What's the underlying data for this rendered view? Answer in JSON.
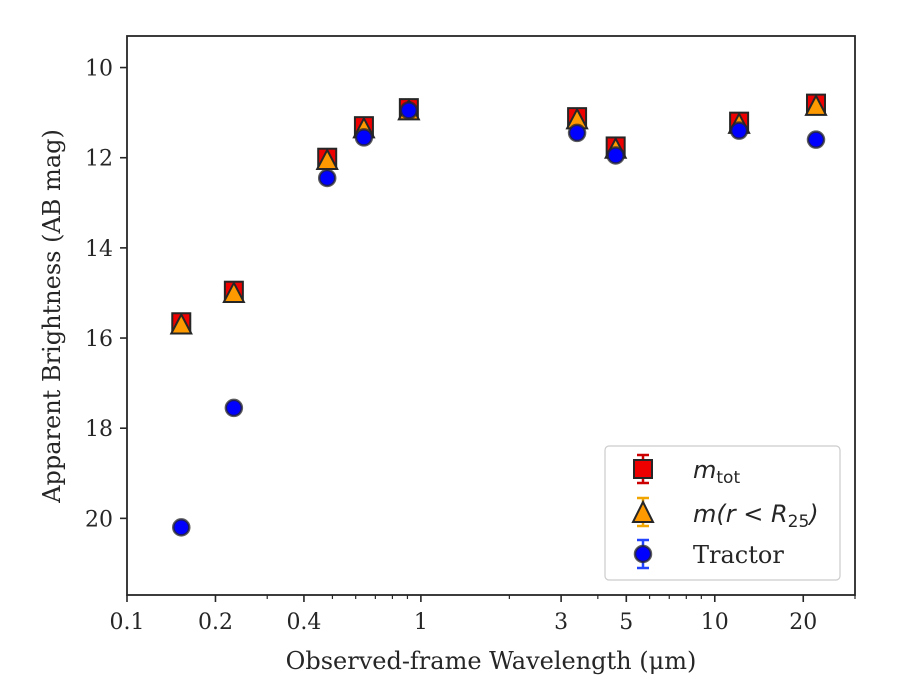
{
  "chart_data": {
    "type": "scatter",
    "title": "",
    "xlabel": "Observed-frame Wavelength (μm)",
    "ylabel": "Apparent Brightness (AB mag)",
    "xscale": "log",
    "xlim": [
      0.1,
      30
    ],
    "ylim": [
      21.7,
      9.3
    ],
    "y_inverted": true,
    "x_ticks": [
      {
        "value": 0.1,
        "label": "0.1"
      },
      {
        "value": 0.2,
        "label": "0.2"
      },
      {
        "value": 0.4,
        "label": "0.4"
      },
      {
        "value": 1,
        "label": "1"
      },
      {
        "value": 3,
        "label": "3"
      },
      {
        "value": 5,
        "label": "5"
      },
      {
        "value": 10,
        "label": "10"
      },
      {
        "value": 20,
        "label": "20"
      }
    ],
    "y_ticks": [
      {
        "value": 10,
        "label": "10"
      },
      {
        "value": 12,
        "label": "12"
      },
      {
        "value": 14,
        "label": "14"
      },
      {
        "value": 16,
        "label": "16"
      },
      {
        "value": 18,
        "label": "18"
      },
      {
        "value": 20,
        "label": "20"
      }
    ],
    "grid": false,
    "legend_position": "lower-right",
    "series": [
      {
        "name": "m_tot",
        "legend_main": "m",
        "legend_sub": "tot",
        "marker": "square",
        "color": "#ee0000",
        "errorbar_color": "#cc0000",
        "x": [
          0.153,
          0.231,
          0.48,
          0.64,
          0.91,
          3.4,
          4.6,
          12.1,
          22.1
        ],
        "y": [
          15.65,
          14.95,
          12.0,
          11.3,
          10.9,
          11.1,
          11.75,
          11.2,
          10.8
        ]
      },
      {
        "name": "m(r<R25)",
        "legend_main": "m(r < R",
        "legend_sub": "25",
        "legend_tail": ")",
        "marker": "triangle",
        "color": "#ff9900",
        "errorbar_color": "#f0a500",
        "x": [
          0.153,
          0.231,
          0.48,
          0.64,
          0.91,
          3.4,
          4.6,
          12.1,
          22.1
        ],
        "y": [
          15.7,
          15.0,
          12.05,
          11.35,
          10.95,
          11.15,
          11.8,
          11.25,
          10.85
        ]
      },
      {
        "name": "Tractor",
        "marker": "circle",
        "color": "#0000ff",
        "errorbar_color": "#2244ff",
        "x": [
          0.153,
          0.231,
          0.48,
          0.64,
          0.91,
          3.4,
          4.6,
          12.1,
          22.1
        ],
        "y": [
          20.2,
          17.55,
          12.45,
          11.55,
          10.95,
          11.45,
          11.95,
          11.4,
          11.6
        ]
      }
    ]
  }
}
